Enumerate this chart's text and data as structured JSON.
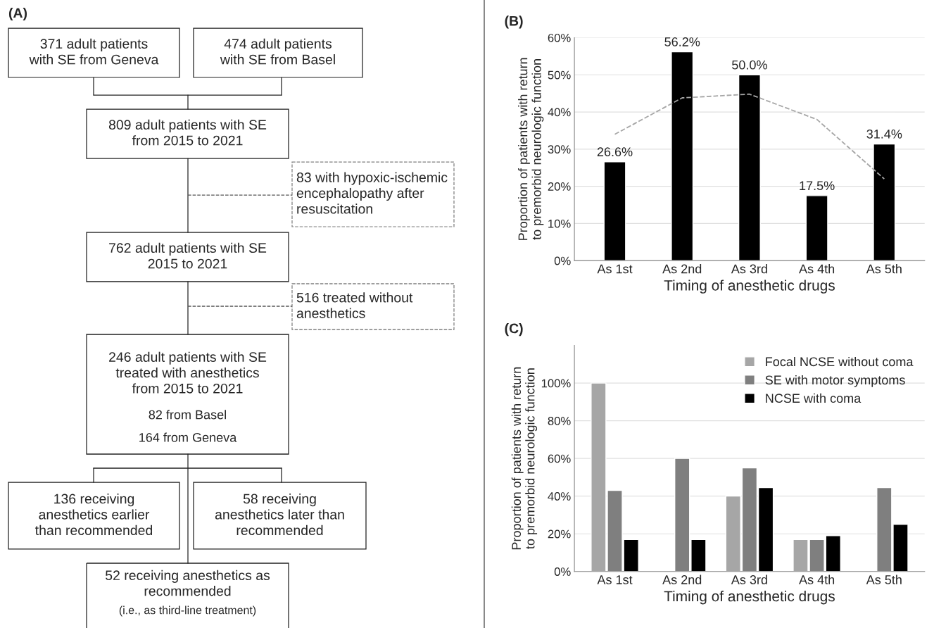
{
  "chart_data": [
    {
      "type": "other",
      "title": "(A)",
      "annotations": [
        "371 adult patients\nwith SE from Geneva",
        "474 adult patients\nwith SE from Basel",
        "809 adult patients with SE\nfrom 2015 to 2021",
        "83 with hypoxic-ischemic\nencephalopathy after\nresuscitation",
        "762 adult patients with SE\n2015 to 2021",
        "516 treated without\nanesthetics",
        "246 adult patients with SE\ntreated with anesthetics\nfrom 2015 to 2021",
        "82 from Basel",
        "164 from Geneva",
        "136 receiving\nanesthetics earlier\nthan recommended",
        "58 receiving\nanesthetics later than\nrecommended",
        "52 receiving anesthetics as\nrecommended",
        "(i.e., as third-line treatment)"
      ]
    },
    {
      "type": "bar",
      "title": "(B)",
      "xlabel": "Timing of anesthetic drugs",
      "ylabel": "Proportion of patients with return\nto premorbid neurologic function",
      "categories": [
        "As 1st",
        "As 2nd",
        "As 3rd",
        "As 4th",
        "As 5th"
      ],
      "series": [
        {
          "type": "bar",
          "color": "#000000",
          "values": [
            26.6,
            56.2,
            50.0,
            17.5,
            31.4
          ],
          "value_labels": [
            "26.6%",
            "56.2%",
            "50.0%",
            "17.5%",
            "31.4%"
          ]
        },
        {
          "type": "line",
          "color": "#a6a6a6",
          "line_style": "dashed",
          "values": [
            34,
            43.8,
            44.8,
            38,
            22
          ]
        }
      ],
      "ylim": [
        0,
        60
      ],
      "yticks": [
        {
          "value": 0,
          "label": "0%"
        },
        {
          "value": 10,
          "label": "10%"
        },
        {
          "value": 20,
          "label": "20%"
        },
        {
          "value": 30,
          "label": "30%"
        },
        {
          "value": 40,
          "label": "40%"
        },
        {
          "value": 50,
          "label": "50%"
        },
        {
          "value": 60,
          "label": "60%"
        }
      ],
      "grid": "y"
    },
    {
      "type": "bar",
      "title": "(C)",
      "xlabel": "Timing of anesthetic drugs",
      "ylabel": "Proportion of patients with return\nto premorbid neurologic function",
      "categories": [
        "As 1st",
        "As 2nd",
        "As 3rd",
        "As 4th",
        "As 5th"
      ],
      "series": [
        {
          "name": "Focal NCSE without coma",
          "color": "#a6a6a6",
          "values": [
            100,
            null,
            40,
            17,
            null
          ]
        },
        {
          "name": "SE with motor symptoms",
          "color": "#7f7f7f",
          "values": [
            43,
            60,
            55,
            17,
            44.5
          ]
        },
        {
          "name": "NCSE with coma",
          "color": "#000000",
          "values": [
            17,
            17,
            44.5,
            19,
            25
          ]
        }
      ],
      "ylim": [
        0,
        120
      ],
      "yticks": [
        {
          "value": 0,
          "label": "0%"
        },
        {
          "value": 20,
          "label": "20%"
        },
        {
          "value": 40,
          "label": "40%"
        },
        {
          "value": 60,
          "label": "60%"
        },
        {
          "value": 80,
          "label": "80%"
        },
        {
          "value": 100,
          "label": "100%"
        }
      ],
      "grid": "y",
      "legend": "top right"
    }
  ]
}
